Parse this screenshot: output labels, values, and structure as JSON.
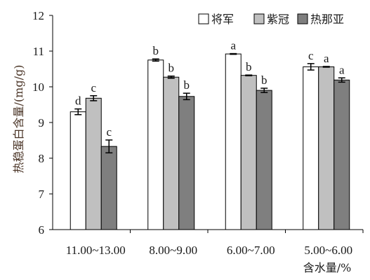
{
  "chart_data": {
    "type": "bar",
    "categories": [
      "11.00~13.00",
      "8.00~9.00",
      "6.00~7.00",
      "5.00~6.00"
    ],
    "series": [
      {
        "name": "将军",
        "color": "#ffffff",
        "values": [
          9.3,
          10.75,
          10.92,
          10.56
        ],
        "errors": [
          0.08,
          0.03,
          0.01,
          0.09
        ],
        "labels": [
          "d",
          "b",
          "a",
          "c"
        ]
      },
      {
        "name": "紫冠",
        "color": "#c0c0c0",
        "values": [
          9.68,
          10.27,
          10.32,
          10.56
        ],
        "errors": [
          0.07,
          0.03,
          0.01,
          0.01
        ],
        "labels": [
          "c",
          "b",
          "b",
          "a"
        ]
      },
      {
        "name": "热那亚",
        "color": "#7f7f7f",
        "values": [
          8.33,
          9.73,
          9.9,
          10.19
        ],
        "errors": [
          0.18,
          0.09,
          0.06,
          0.06
        ],
        "labels": [
          "c",
          "b",
          "b",
          "a"
        ]
      }
    ],
    "xlabel": "含水量/%",
    "ylabel": "热稳蛋白含量/(mg/g)",
    "ylim": [
      6,
      12
    ],
    "yticks": [
      6,
      7,
      8,
      9,
      10,
      11,
      12
    ],
    "legend": "top-right",
    "grid": false
  }
}
